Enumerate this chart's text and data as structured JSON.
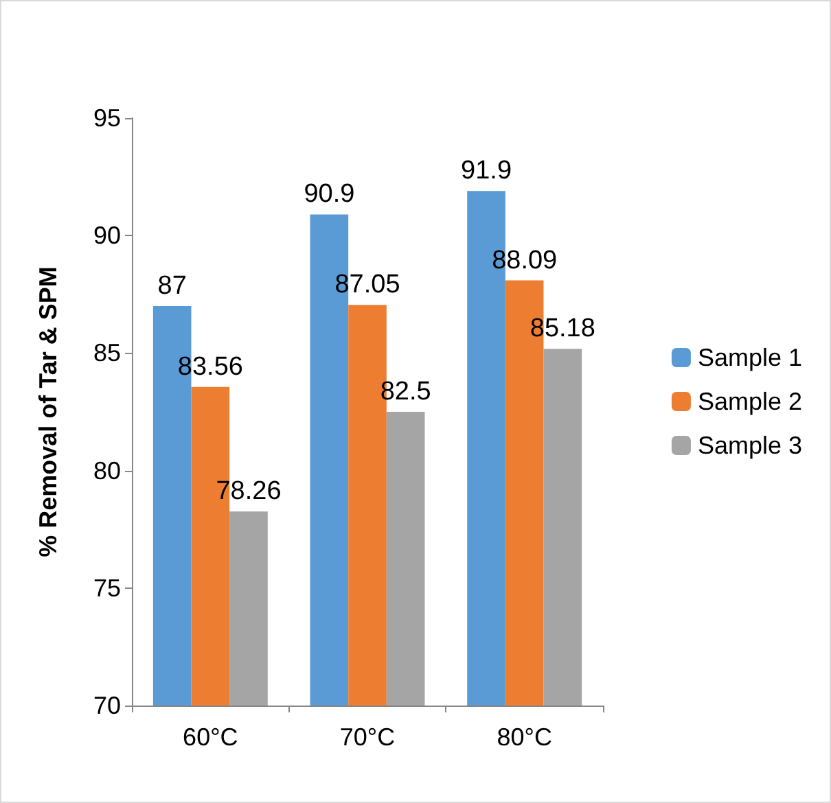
{
  "chart_data": {
    "type": "bar",
    "ylabel": "% Removal of Tar & SPM",
    "categories": [
      "60°C",
      "70°C",
      "80°C"
    ],
    "series": [
      {
        "name": "Sample 1",
        "color": "#5b9bd5",
        "values": [
          87,
          90.9,
          91.9
        ]
      },
      {
        "name": "Sample 2",
        "color": "#ed7d31",
        "values": [
          83.56,
          87.05,
          88.09
        ]
      },
      {
        "name": "Sample 3",
        "color": "#a5a5a5",
        "values": [
          78.26,
          82.5,
          85.18
        ]
      }
    ],
    "ylim": [
      70,
      95
    ],
    "yticks": [
      70,
      75,
      80,
      85,
      90,
      95
    ],
    "grid": false,
    "legend": "right",
    "data_labels": true
  }
}
